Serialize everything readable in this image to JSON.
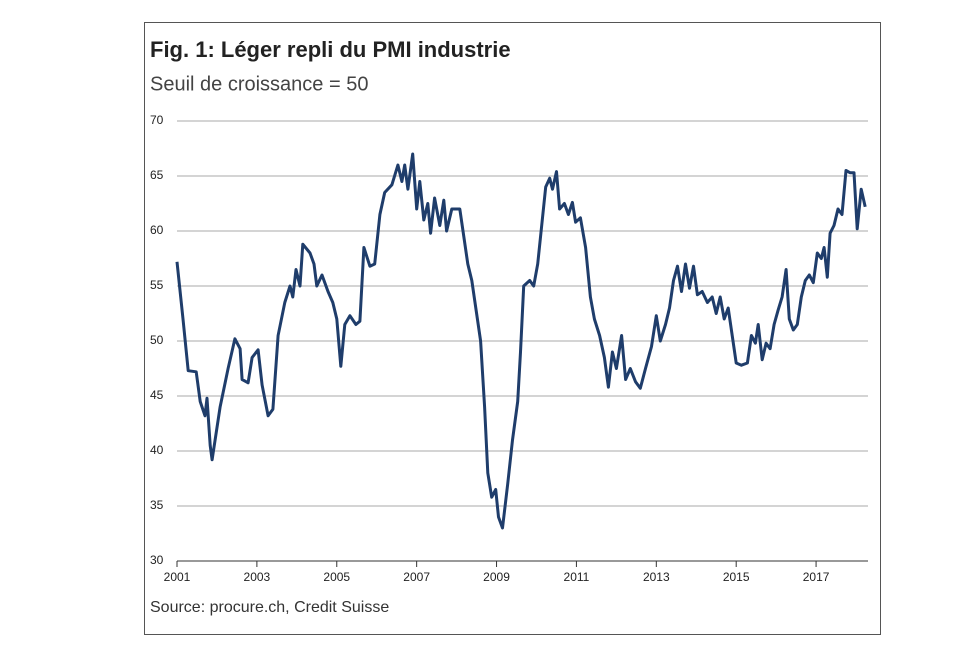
{
  "chart_data": {
    "type": "line",
    "title": "Fig. 1: Léger repli du PMI industrie",
    "subtitle": "Seuil de croissance = 50",
    "source": "Source: procure.ch, Credit Suisse",
    "color": "#1f3d6b",
    "grid": true,
    "xlim": [
      2001,
      2018.3
    ],
    "xticks": [
      2001,
      2003,
      2005,
      2007,
      2009,
      2011,
      2013,
      2015,
      2017
    ],
    "ylim": [
      30,
      70
    ],
    "yticks": [
      30,
      35,
      40,
      45,
      50,
      55,
      60,
      65,
      70
    ],
    "x": [
      2001.0,
      2001.15,
      2001.28,
      2001.48,
      2001.58,
      2001.7,
      2001.75,
      2001.83,
      2001.88,
      2002.08,
      2002.28,
      2002.45,
      2002.58,
      2002.63,
      2002.78,
      2002.88,
      2003.03,
      2003.13,
      2003.28,
      2003.4,
      2003.53,
      2003.7,
      2003.83,
      2003.9,
      2003.98,
      2004.08,
      2004.15,
      2004.33,
      2004.43,
      2004.5,
      2004.63,
      2004.78,
      2004.9,
      2005.0,
      2005.1,
      2005.2,
      2005.33,
      2005.48,
      2005.58,
      2005.68,
      2005.83,
      2005.95,
      2006.08,
      2006.2,
      2006.38,
      2006.53,
      2006.63,
      2006.7,
      2006.78,
      2006.9,
      2007.0,
      2007.08,
      2007.18,
      2007.28,
      2007.35,
      2007.45,
      2007.58,
      2007.68,
      2007.75,
      2007.88,
      2008.08,
      2008.18,
      2008.28,
      2008.38,
      2008.5,
      2008.6,
      2008.7,
      2008.78,
      2008.88,
      2008.98,
      2009.05,
      2009.15,
      2009.28,
      2009.4,
      2009.53,
      2009.6,
      2009.68,
      2009.83,
      2009.93,
      2010.03,
      2010.13,
      2010.23,
      2010.33,
      2010.4,
      2010.5,
      2010.58,
      2010.7,
      2010.8,
      2010.9,
      2010.98,
      2011.1,
      2011.23,
      2011.35,
      2011.45,
      2011.58,
      2011.7,
      2011.8,
      2011.9,
      2012.0,
      2012.13,
      2012.23,
      2012.35,
      2012.48,
      2012.6,
      2012.73,
      2012.88,
      2013.0,
      2013.1,
      2013.23,
      2013.33,
      2013.43,
      2013.53,
      2013.63,
      2013.73,
      2013.83,
      2013.93,
      2014.03,
      2014.15,
      2014.28,
      2014.4,
      2014.5,
      2014.6,
      2014.7,
      2014.8,
      2014.9,
      2015.0,
      2015.13,
      2015.28,
      2015.38,
      2015.48,
      2015.55,
      2015.65,
      2015.75,
      2015.85,
      2015.95,
      2016.05,
      2016.15,
      2016.25,
      2016.33,
      2016.43,
      2016.53,
      2016.63,
      2016.73,
      2016.83,
      2016.93,
      2017.03,
      2017.13,
      2017.2,
      2017.28,
      2017.35,
      2017.45,
      2017.55,
      2017.65,
      2017.75,
      2017.85,
      2017.95,
      2018.03,
      2018.13,
      2018.23
    ],
    "values": [
      57.2,
      52,
      47.3,
      47.2,
      44.5,
      43.2,
      44.8,
      40.5,
      39.2,
      44,
      47.5,
      50.2,
      49.3,
      46.5,
      46.2,
      48.5,
      49.2,
      46,
      43.2,
      43.8,
      50.5,
      53.5,
      55,
      54,
      56.5,
      55,
      58.8,
      58,
      57,
      55,
      56,
      54.5,
      53.5,
      52,
      47.7,
      51.5,
      52.3,
      51.5,
      51.8,
      58.5,
      56.8,
      57,
      61.5,
      63.5,
      64.2,
      66,
      64.5,
      66,
      63.8,
      67,
      62,
      64.5,
      61,
      62.5,
      59.8,
      63,
      60.5,
      62.8,
      60,
      62,
      62,
      59.5,
      57,
      55.5,
      52.5,
      50,
      44,
      38,
      35.8,
      36.5,
      34,
      33,
      37,
      41,
      44.5,
      49,
      55,
      55.5,
      55,
      57,
      60.5,
      64,
      64.8,
      63.8,
      65.4,
      62,
      62.5,
      61.5,
      62.6,
      60.8,
      61.2,
      58.5,
      54,
      52,
      50.5,
      48.5,
      45.8,
      49,
      47.5,
      50.5,
      46.5,
      47.5,
      46.3,
      45.7,
      47.5,
      49.5,
      52.3,
      50,
      51.5,
      53,
      55.5,
      56.8,
      54.5,
      57,
      54.8,
      56.8,
      54.2,
      54.5,
      53.5,
      54,
      52.5,
      54,
      52,
      53,
      50.5,
      48,
      47.8,
      48,
      50.5,
      49.8,
      51.5,
      48.3,
      49.8,
      49.3,
      51.5,
      52.8,
      54,
      56.5,
      52,
      51,
      51.5,
      54,
      55.5,
      56,
      55.3,
      58,
      57.5,
      58.5,
      55.8,
      59.8,
      60.5,
      62,
      61.5,
      65.5,
      65.3,
      65.3,
      60.2,
      63.8,
      62.2
    ]
  }
}
